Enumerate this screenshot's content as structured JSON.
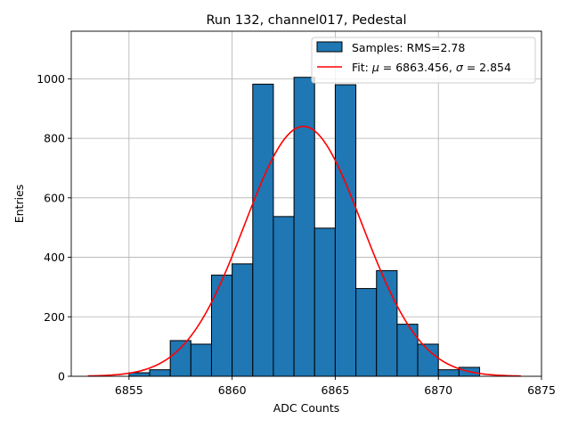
{
  "chart_data": {
    "type": "bar",
    "title": "Run 132, channel017, Pedestal",
    "xlabel": "ADC Counts",
    "ylabel": "Entries",
    "xlim": [
      6852.2,
      6875.0
    ],
    "ylim": [
      0,
      1160
    ],
    "xticks": [
      6855,
      6860,
      6865,
      6870,
      6875
    ],
    "yticks": [
      0,
      200,
      400,
      600,
      800,
      1000
    ],
    "grid": true,
    "legend_position": "top-right",
    "bin_edges": [
      6855,
      6856,
      6857,
      6858,
      6859,
      6860,
      6861,
      6862,
      6863,
      6864,
      6865,
      6866,
      6867,
      6868,
      6869,
      6870,
      6871,
      6872
    ],
    "counts": [
      12,
      22,
      120,
      108,
      340,
      378,
      982,
      537,
      1005,
      498,
      980,
      295,
      355,
      175,
      108,
      22,
      30
    ],
    "series": [
      {
        "name": "Samples: RMS=2.78",
        "kind": "histogram",
        "color": "#1f77b4",
        "edgecolor": "#000000"
      },
      {
        "name_prefix": "Fit: ",
        "mu_symbol": "μ",
        "mu_text": " = 6863.456, ",
        "sigma_symbol": "σ",
        "sigma_text": " = 2.854",
        "kind": "gaussian-fit",
        "color": "#ff0000",
        "mu": 6863.456,
        "sigma": 2.854,
        "amplitude": 840,
        "x_range": [
          6853,
          6874
        ]
      }
    ]
  }
}
